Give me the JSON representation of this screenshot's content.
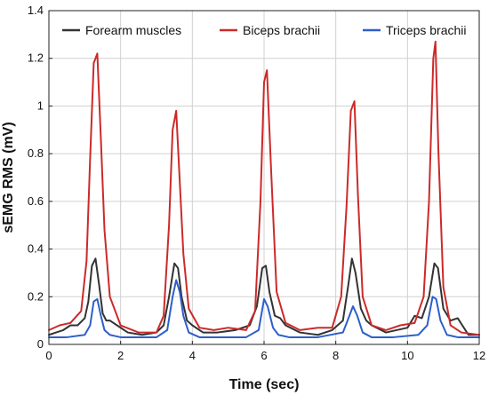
{
  "chart_data": {
    "type": "line",
    "xlabel": "Time (sec)",
    "ylabel": "sEMG RMS (mV)",
    "xlim": [
      0,
      12
    ],
    "ylim": [
      0,
      1.4
    ],
    "xticks": [
      0,
      2,
      4,
      6,
      8,
      10,
      12
    ],
    "yticks": [
      0,
      0.2,
      0.4,
      0.6,
      0.8,
      1,
      1.2,
      1.4
    ],
    "xtick_labels": [
      "0",
      "2",
      "4",
      "6",
      "8",
      "10",
      "12"
    ],
    "ytick_labels": [
      "0",
      "0.2",
      "0.4",
      "0.6",
      "0.8",
      "1",
      "1.2",
      "1.4"
    ],
    "grid": true,
    "legend_position": "top",
    "series": [
      {
        "name": "Forearm muscles",
        "color": "#333333",
        "x": [
          0,
          0.2,
          0.4,
          0.6,
          0.8,
          1.0,
          1.1,
          1.2,
          1.3,
          1.4,
          1.5,
          1.6,
          1.7,
          1.9,
          2.2,
          2.6,
          3.0,
          3.2,
          3.35,
          3.5,
          3.6,
          3.7,
          3.85,
          4.0,
          4.3,
          4.7,
          5.2,
          5.6,
          5.8,
          5.95,
          6.05,
          6.15,
          6.3,
          6.45,
          6.6,
          7.0,
          7.5,
          7.9,
          8.2,
          8.35,
          8.45,
          8.55,
          8.7,
          8.85,
          9.0,
          9.4,
          10.0,
          10.2,
          10.4,
          10.6,
          10.75,
          10.85,
          11.0,
          11.2,
          11.4,
          11.7,
          12.0
        ],
        "y": [
          0.04,
          0.05,
          0.06,
          0.08,
          0.08,
          0.11,
          0.18,
          0.33,
          0.36,
          0.25,
          0.13,
          0.1,
          0.1,
          0.08,
          0.05,
          0.04,
          0.05,
          0.08,
          0.2,
          0.34,
          0.32,
          0.2,
          0.1,
          0.08,
          0.05,
          0.05,
          0.06,
          0.08,
          0.16,
          0.32,
          0.33,
          0.22,
          0.12,
          0.11,
          0.08,
          0.05,
          0.04,
          0.06,
          0.1,
          0.25,
          0.36,
          0.3,
          0.15,
          0.1,
          0.08,
          0.05,
          0.07,
          0.12,
          0.11,
          0.2,
          0.34,
          0.32,
          0.15,
          0.1,
          0.11,
          0.04,
          0.04
        ]
      },
      {
        "name": "Biceps brachii",
        "color": "#cc2a2a",
        "x": [
          0,
          0.3,
          0.6,
          0.9,
          1.05,
          1.15,
          1.25,
          1.35,
          1.45,
          1.55,
          1.7,
          2.0,
          2.5,
          3.0,
          3.2,
          3.35,
          3.45,
          3.55,
          3.65,
          3.75,
          3.9,
          4.2,
          4.6,
          5.0,
          5.5,
          5.75,
          5.9,
          6.0,
          6.08,
          6.2,
          6.35,
          6.6,
          7.0,
          7.5,
          7.9,
          8.15,
          8.3,
          8.42,
          8.52,
          8.62,
          8.75,
          9.0,
          9.4,
          9.8,
          10.2,
          10.45,
          10.6,
          10.72,
          10.78,
          10.86,
          11.0,
          11.2,
          11.5,
          12.0
        ],
        "y": [
          0.06,
          0.08,
          0.09,
          0.14,
          0.35,
          0.78,
          1.18,
          1.22,
          0.86,
          0.48,
          0.2,
          0.08,
          0.05,
          0.05,
          0.12,
          0.5,
          0.9,
          0.98,
          0.68,
          0.38,
          0.15,
          0.07,
          0.06,
          0.07,
          0.06,
          0.14,
          0.6,
          1.1,
          1.15,
          0.72,
          0.22,
          0.09,
          0.06,
          0.07,
          0.07,
          0.2,
          0.58,
          0.98,
          1.02,
          0.62,
          0.2,
          0.08,
          0.06,
          0.08,
          0.09,
          0.2,
          0.6,
          1.2,
          1.27,
          0.82,
          0.24,
          0.08,
          0.05,
          0.04
        ]
      },
      {
        "name": "Triceps brachii",
        "color": "#2d5fc9",
        "x": [
          0,
          0.5,
          1.0,
          1.15,
          1.25,
          1.35,
          1.45,
          1.55,
          1.7,
          2.0,
          2.5,
          3.0,
          3.3,
          3.45,
          3.55,
          3.65,
          3.75,
          3.9,
          4.2,
          4.8,
          5.5,
          5.85,
          6.0,
          6.1,
          6.25,
          6.4,
          6.7,
          7.5,
          8.2,
          8.38,
          8.48,
          8.6,
          8.75,
          9.0,
          9.6,
          10.3,
          10.55,
          10.7,
          10.8,
          10.92,
          11.1,
          11.4,
          12.0
        ],
        "y": [
          0.03,
          0.03,
          0.04,
          0.08,
          0.18,
          0.19,
          0.12,
          0.06,
          0.04,
          0.03,
          0.03,
          0.03,
          0.06,
          0.2,
          0.27,
          0.22,
          0.12,
          0.05,
          0.03,
          0.03,
          0.03,
          0.06,
          0.19,
          0.16,
          0.07,
          0.04,
          0.03,
          0.03,
          0.05,
          0.12,
          0.16,
          0.12,
          0.05,
          0.03,
          0.03,
          0.04,
          0.08,
          0.2,
          0.19,
          0.1,
          0.04,
          0.03,
          0.03
        ]
      }
    ]
  }
}
